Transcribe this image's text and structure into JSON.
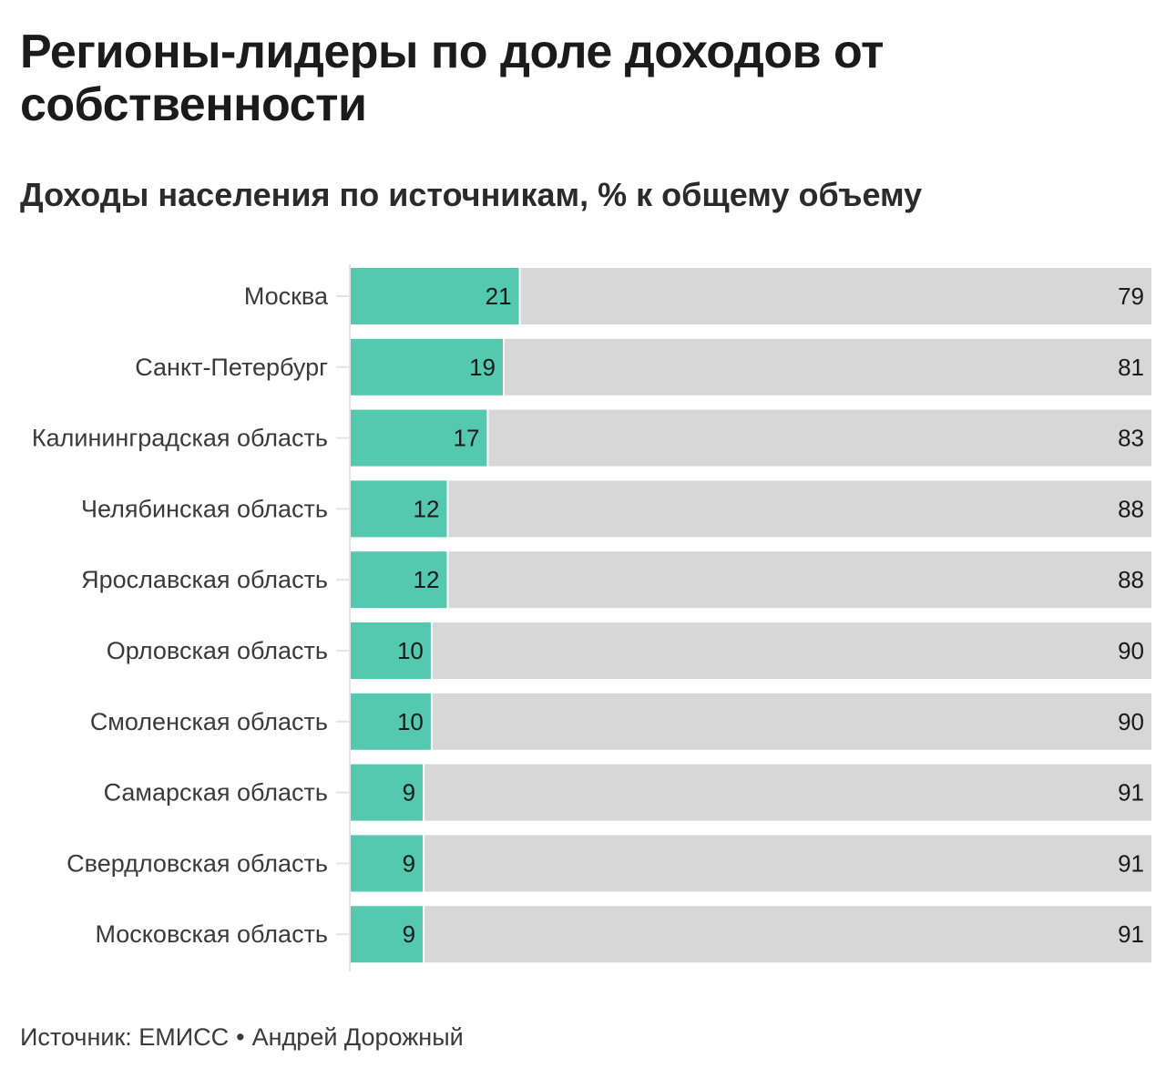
{
  "header": {
    "title": "Регионы-лидеры по доле доходов от собственности",
    "subtitle": "Доходы населения по источникам, % к общему объему"
  },
  "footer": {
    "source": "Источник: ЕМИСС",
    "separator": "•",
    "author": "Андрей Дорожный"
  },
  "colors": {
    "property_income": "#55c8b0",
    "other_income": "#d7d7d7",
    "axis_tick": "#e4e4e4",
    "label_text": "#3a3a3a",
    "value_text": "#1a1a1a"
  },
  "chart_data": {
    "type": "bar",
    "orientation": "horizontal",
    "stacked": true,
    "categories": [
      "Москва",
      "Санкт-Петербург",
      "Калининградская область",
      "Челябинская область",
      "Ярославская область",
      "Орловская область",
      "Смоленская область",
      "Самарская область",
      "Свердловская область",
      "Московская область"
    ],
    "series": [
      {
        "values": [
          21,
          19,
          17,
          12,
          12,
          10,
          10,
          9,
          9,
          9
        ]
      },
      {
        "values": [
          79,
          81,
          83,
          88,
          88,
          90,
          90,
          91,
          91,
          91
        ]
      }
    ],
    "xlim": [
      0,
      100
    ],
    "grid": false,
    "legend": "none"
  }
}
